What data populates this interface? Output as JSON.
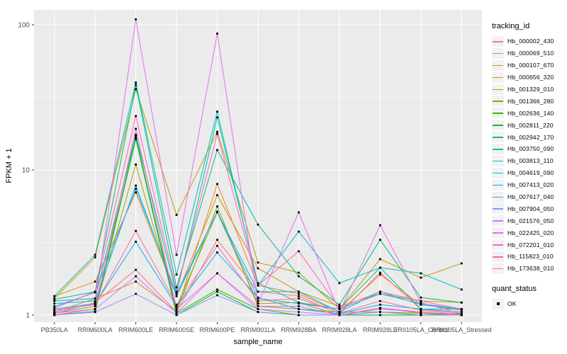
{
  "chart_data": {
    "type": "line",
    "title": "",
    "x_axis": {
      "label": "sample_name",
      "categories": [
        "PB350LA",
        "RRIM600LA",
        "RRIM600LE",
        "RRIM600SE",
        "RRIM600PE",
        "RRIM901LA",
        "RRIM928BA",
        "RRIM928LA",
        "RRIM928LE",
        "RRII105LA_Control",
        "RRII105LA_Stressed"
      ]
    },
    "y_axis": {
      "label": "FPKM + 1",
      "scale": "log10",
      "tick_labels": [
        "1",
        "10",
        "100"
      ],
      "ticks": [
        1,
        10,
        100
      ],
      "minor_ticks": [
        3.162,
        31.62
      ],
      "range": [
        0.9,
        126
      ]
    },
    "legend": {
      "title": "tracking_id",
      "position": "right"
    },
    "quant_status": {
      "title": "quant_status",
      "items": [
        {
          "label": "OK",
          "marker": "black-square"
        }
      ]
    },
    "marker": {
      "shape": "square",
      "color": "#000000",
      "size": 2.8
    },
    "colors": {
      "panel_bg": "#EBEBEB",
      "grid": "#FFFFFF",
      "axis_text": "#4D4D4D",
      "tick": "#333333"
    },
    "series": [
      {
        "name": "Hb_000002_430",
        "color": "#F8766D",
        "values": [
          1.02,
          1.22,
          2.05,
          1.05,
          3.3,
          1.45,
          1.35,
          1.02,
          1.96,
          1.1,
          1.02
        ]
      },
      {
        "name": "Hb_000069_510",
        "color": "#EA8331",
        "values": [
          1.05,
          1.3,
          1.7,
          1.06,
          8.0,
          1.6,
          1.4,
          1.05,
          1.9,
          1.18,
          1.08
        ]
      },
      {
        "name": "Hb_000107_670",
        "color": "#D89000",
        "values": [
          1.35,
          1.7,
          7.0,
          1.35,
          6.7,
          2.1,
          1.45,
          1.15,
          1.4,
          1.25,
          1.22
        ]
      },
      {
        "name": "Hb_000656_320",
        "color": "#C09B00",
        "values": [
          1.3,
          2.5,
          36,
          4.9,
          18.3,
          2.3,
          1.96,
          1.1,
          2.43,
          1.81,
          2.27
        ]
      },
      {
        "name": "Hb_001329_010",
        "color": "#A3A500",
        "values": [
          1.0,
          1.1,
          10.9,
          1.14,
          5.1,
          1.2,
          1.22,
          1.0,
          1.12,
          1.03,
          1.02
        ]
      },
      {
        "name": "Hb_001366_280",
        "color": "#7CAE00",
        "values": [
          1.03,
          1.15,
          16.5,
          1.06,
          5.6,
          1.15,
          1.1,
          1.05,
          1.05,
          1.03,
          1.0
        ]
      },
      {
        "name": "Hb_002636_140",
        "color": "#39B600",
        "values": [
          1.0,
          1.05,
          17.0,
          1.03,
          1.5,
          1.1,
          1.0,
          1.0,
          1.05,
          1.0,
          1.02
        ]
      },
      {
        "name": "Hb_002811_220",
        "color": "#00BB4E",
        "values": [
          1.0,
          1.06,
          16.3,
          1.0,
          1.45,
          1.05,
          1.0,
          1.0,
          1.0,
          1.0,
          1.0
        ]
      },
      {
        "name": "Hb_002942_170",
        "color": "#00BF7D",
        "values": [
          1.28,
          1.45,
          38.5,
          1.55,
          13.7,
          4.2,
          1.85,
          1.18,
          3.3,
          1.32,
          1.22
        ]
      },
      {
        "name": "Hb_003750_090",
        "color": "#00C1A3",
        "values": [
          1.25,
          1.3,
          17.5,
          1.4,
          23,
          1.66,
          1.22,
          1.1,
          2.12,
          1.1,
          1.1
        ]
      },
      {
        "name": "Hb_003813_110",
        "color": "#00BFC4",
        "values": [
          1.35,
          2.6,
          40,
          1.9,
          25.2,
          1.6,
          3.76,
          1.66,
          2.12,
          1.94,
          1.5
        ]
      },
      {
        "name": "Hb_004619_090",
        "color": "#00BAE0",
        "values": [
          1.2,
          1.25,
          7.8,
          1.35,
          5.15,
          1.45,
          1.45,
          1.05,
          1.45,
          1.18,
          1.1
        ]
      },
      {
        "name": "Hb_007413_020",
        "color": "#00B0F6",
        "values": [
          1.1,
          1.2,
          3.2,
          1.15,
          2.7,
          1.32,
          1.1,
          1.02,
          1.18,
          1.1,
          1.05
        ]
      },
      {
        "name": "Hb_007617_040",
        "color": "#35A2FF",
        "values": [
          1.12,
          1.45,
          7.4,
          1.4,
          5.15,
          1.3,
          1.2,
          1.1,
          1.4,
          1.2,
          1.1
        ]
      },
      {
        "name": "Hb_007904_050",
        "color": "#9590FF",
        "values": [
          1.0,
          1.05,
          1.4,
          1.0,
          1.37,
          1.05,
          1.0,
          1.0,
          1.05,
          1.0,
          1.0
        ]
      },
      {
        "name": "Hb_021576_050",
        "color": "#C77CFF",
        "values": [
          1.03,
          1.1,
          1.85,
          1.03,
          1.94,
          1.1,
          1.05,
          1.0,
          1.1,
          1.05,
          1.0
        ]
      },
      {
        "name": "Hb_022425_020",
        "color": "#E76BF3",
        "values": [
          1.05,
          1.2,
          109,
          2.6,
          87,
          1.2,
          5.1,
          1.05,
          4.16,
          1.22,
          1.02
        ]
      },
      {
        "name": "Hb_072201_010",
        "color": "#FA62DB",
        "values": [
          1.0,
          1.1,
          19.2,
          1.1,
          1.94,
          1.15,
          1.15,
          1.0,
          1.12,
          1.05,
          1.0
        ]
      },
      {
        "name": "Hb_115823_010",
        "color": "#FF62BC",
        "values": [
          1.15,
          1.43,
          23.5,
          1.45,
          17.7,
          1.6,
          2.75,
          1.12,
          1.45,
          1.25,
          1.1
        ]
      },
      {
        "name": "Hb_173638_010",
        "color": "#FF6A98",
        "values": [
          1.08,
          1.18,
          3.8,
          1.18,
          3.0,
          1.25,
          1.3,
          1.03,
          1.25,
          1.08,
          1.0
        ]
      }
    ]
  }
}
